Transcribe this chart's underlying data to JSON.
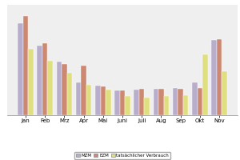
{
  "months": [
    "Jan",
    "Feb",
    "Mrz",
    "Apr",
    "Mai",
    "Juni",
    "Juli",
    "Aug",
    "Sep",
    "Okt",
    "Nov"
  ],
  "MZM": [
    5000,
    3800,
    2900,
    1800,
    1600,
    1350,
    1400,
    1450,
    1500,
    1800,
    4100
  ],
  "EZM": [
    5400,
    3900,
    2800,
    2700,
    1550,
    1350,
    1450,
    1450,
    1450,
    1500,
    4150
  ],
  "tatsaechlicher": [
    3600,
    2950,
    2300,
    1650,
    1400,
    1050,
    950,
    1050,
    1100,
    3300,
    2400
  ],
  "bar_colors": [
    "#b8aecb",
    "#cc8870",
    "#e0df80"
  ],
  "ylim": [
    0,
    6000
  ],
  "legend_labels": [
    "MZM",
    "EZM",
    "tatsächlicher Verbrauch"
  ],
  "background_color": "#efefef",
  "grid_color": "#ffffff",
  "bar_edge_color": "#ffffff"
}
